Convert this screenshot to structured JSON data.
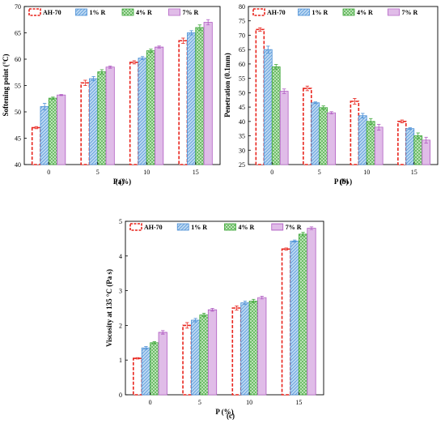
{
  "colors": {
    "AH-70": "#e8231c",
    "1% R": "#4a8fd6",
    "4% R": "#3aa535",
    "7% R": "#b05cc2",
    "AH-70_fill": "#ffffff",
    "1% R_fill": "#bcd8f2",
    "4% R_fill": "#c7e8c2",
    "7% R_fill": "#f1dcf5"
  },
  "chart_data": [
    {
      "type": "bar",
      "panel_label": "(a)",
      "xlabel": "P (%)",
      "ylabel": "Softening point (°C)",
      "categories": [
        "0",
        "5",
        "10",
        "15"
      ],
      "ylim": [
        40,
        70
      ],
      "yticks": [
        "40",
        "45",
        "50",
        "55",
        "60",
        "65",
        "70"
      ],
      "legend_placement": "top-left",
      "series": [
        {
          "name": "AH-70",
          "values": [
            47.0,
            55.5,
            59.4,
            63.5
          ],
          "errors": [
            0.2,
            0.5,
            0.3,
            0.5
          ]
        },
        {
          "name": "1% R",
          "values": [
            51.0,
            56.3,
            60.2,
            65.0
          ],
          "errors": [
            0.6,
            0.4,
            0.3,
            0.4
          ]
        },
        {
          "name": "4% R",
          "values": [
            52.6,
            57.6,
            61.6,
            66.0
          ],
          "errors": [
            0.2,
            0.4,
            0.3,
            0.5
          ]
        },
        {
          "name": "7% R",
          "values": [
            53.2,
            58.5,
            62.3,
            67.0
          ],
          "errors": [
            0.1,
            0.2,
            0.2,
            0.5
          ]
        }
      ]
    },
    {
      "type": "bar",
      "panel_label": "(b)",
      "xlabel": "P (%)",
      "ylabel": "Penetration (0.1mm)",
      "categories": [
        "0",
        "5",
        "10",
        "15"
      ],
      "ylim": [
        25,
        80
      ],
      "yticks": [
        "25",
        "30",
        "35",
        "40",
        "45",
        "50",
        "55",
        "60",
        "65",
        "70",
        "75",
        "80"
      ],
      "legend_placement": "top-left",
      "series": [
        {
          "name": "AH-70",
          "values": [
            72.0,
            51.5,
            47.0,
            40.0
          ],
          "errors": [
            0.6,
            0.8,
            1.0,
            0.5
          ]
        },
        {
          "name": "1% R",
          "values": [
            65.0,
            46.5,
            42.0,
            37.5
          ],
          "errors": [
            1.2,
            0.3,
            0.8,
            0.3
          ]
        },
        {
          "name": "4% R",
          "values": [
            59.0,
            44.8,
            40.0,
            35.0
          ],
          "errors": [
            0.8,
            0.6,
            1.0,
            1.0
          ]
        },
        {
          "name": "7% R",
          "values": [
            50.5,
            43.0,
            38.0,
            33.5
          ],
          "errors": [
            0.8,
            0.4,
            1.0,
            1.0
          ]
        }
      ]
    },
    {
      "type": "bar",
      "panel_label": "(c)",
      "xlabel": "P (%)",
      "ylabel": "Viscosity at 135 °C (Pa s)",
      "categories": [
        "0",
        "5",
        "10",
        "15"
      ],
      "ylim": [
        0,
        5
      ],
      "yticks": [
        "0",
        "1",
        "2",
        "3",
        "4",
        "5"
      ],
      "legend_placement": "top-left",
      "series": [
        {
          "name": "AH-70",
          "values": [
            1.05,
            2.0,
            2.5,
            4.2
          ],
          "errors": [
            0.02,
            0.08,
            0.06,
            0.03
          ]
        },
        {
          "name": "1% R",
          "values": [
            1.35,
            2.15,
            2.65,
            4.43
          ],
          "errors": [
            0.04,
            0.05,
            0.05,
            0.03
          ]
        },
        {
          "name": "4% R",
          "values": [
            1.5,
            2.3,
            2.7,
            4.63
          ],
          "errors": [
            0.03,
            0.05,
            0.05,
            0.05
          ]
        },
        {
          "name": "7% R",
          "values": [
            1.8,
            2.45,
            2.8,
            4.8
          ],
          "errors": [
            0.05,
            0.04,
            0.04,
            0.04
          ]
        }
      ]
    }
  ]
}
